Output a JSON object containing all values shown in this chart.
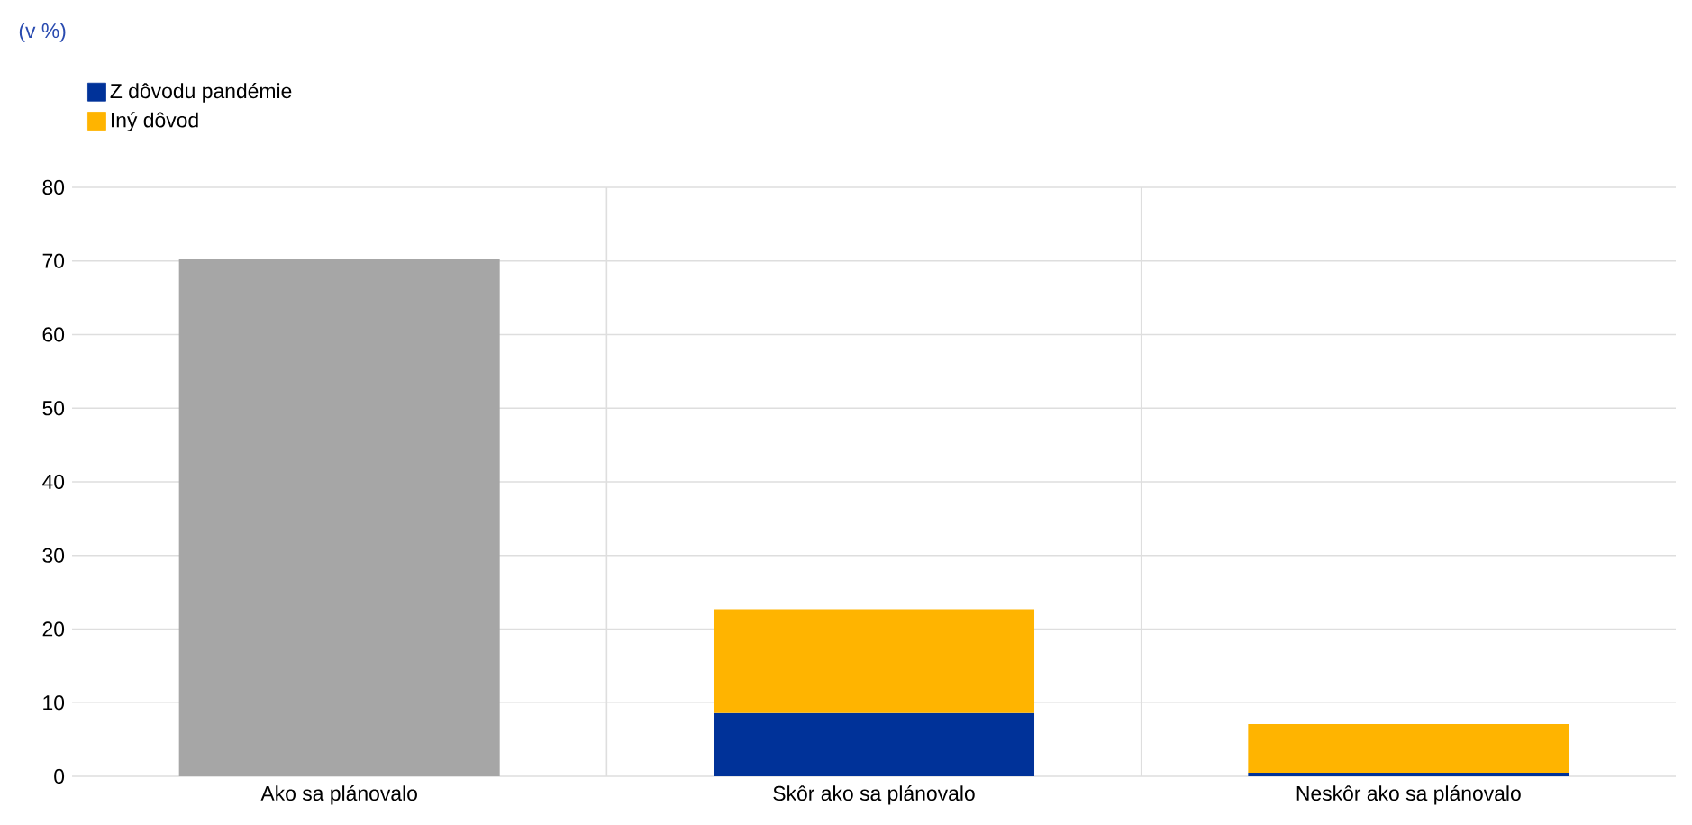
{
  "chart_data": {
    "type": "bar",
    "stacked": true,
    "annotations": [
      "(v %)"
    ],
    "categories": [
      "Ako sa plánovalo",
      "Skôr ako sa plánovalo",
      "Neskôr ako sa plánovalo"
    ],
    "series": [
      {
        "color": "#a6a6a6",
        "values": [
          70.2,
          null,
          null
        ]
      },
      {
        "name": "Z dôvodu pandémie",
        "color": "#003299",
        "values": [
          null,
          8.6,
          0.5
        ]
      },
      {
        "name": "Iný dôvod",
        "color": "#ffb400",
        "values": [
          null,
          14.1,
          6.6
        ]
      }
    ],
    "ylim": [
      0,
      80
    ],
    "yticks": [
      0,
      10,
      20,
      30,
      40,
      50,
      60,
      70,
      80
    ],
    "grid": true,
    "legend": "top left"
  }
}
